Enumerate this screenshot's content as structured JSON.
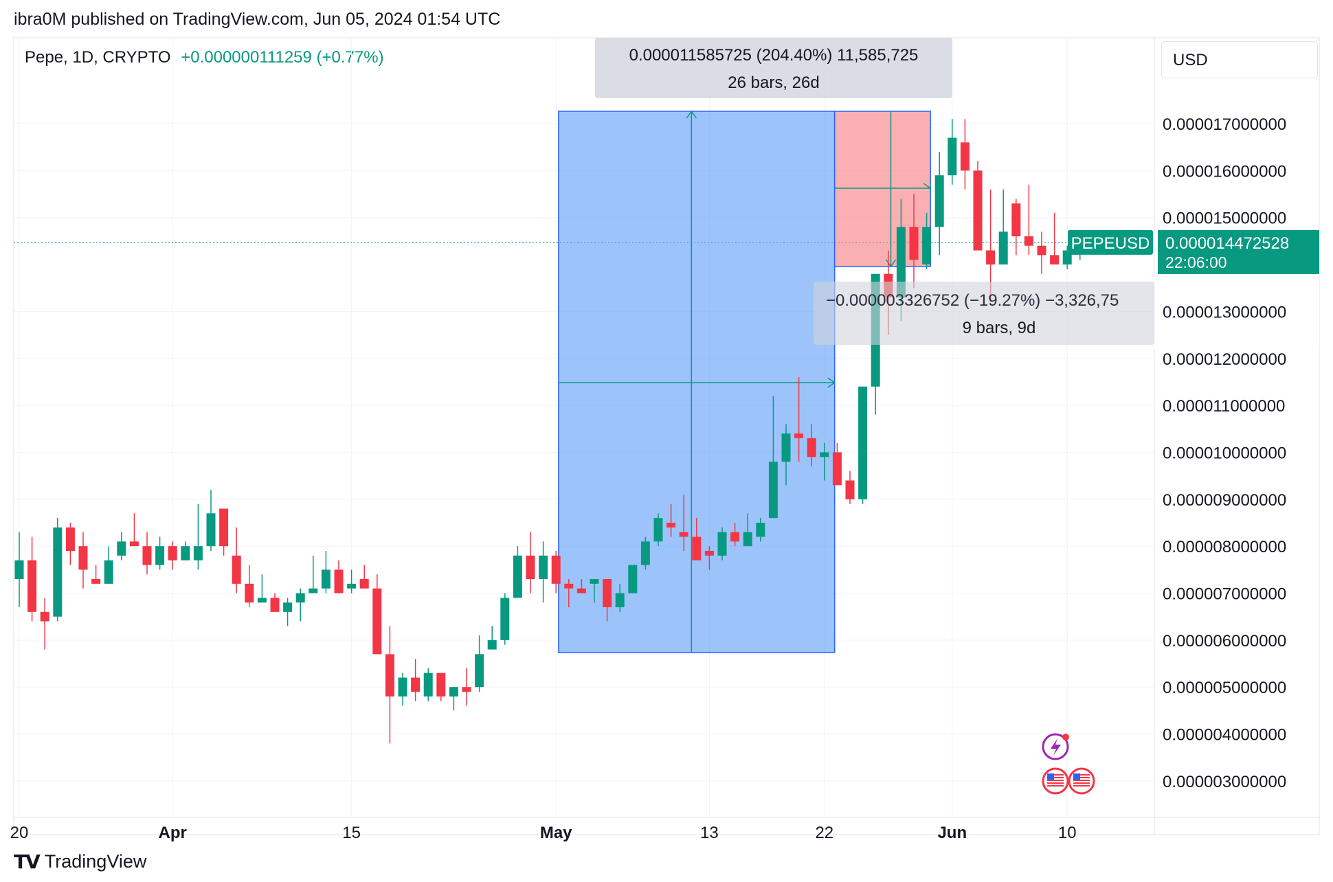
{
  "header": {
    "published": "ibra0M published on TradingView.com, Jun 05, 2024 01:54 UTC"
  },
  "legend": {
    "symbol": "Pepe, 1D, CRYPTO",
    "change": "+0.000000111259 (+0.77%)"
  },
  "currency": "USD",
  "footer": {
    "brand": "TradingView",
    "logo_icon": "tradingview-logo-icon"
  },
  "colors": {
    "up": "#089981",
    "down": "#f23645",
    "long_zone": "#5b9cf6",
    "short_zone": "#f77c80",
    "measure_line": "#089981"
  },
  "chart_data": {
    "type": "candlestick",
    "title": "",
    "xlabel": "",
    "ylabel": "",
    "ylim": [
      2.5e-06,
      1.82e-05
    ],
    "y_ticks": [
      "0.000017000000",
      "0.000016000000",
      "0.000015000000",
      "0.000013000000",
      "0.000012000000",
      "0.000011000000",
      "0.000010000000",
      "0.000009000000",
      "0.000008000000",
      "0.000007000000",
      "0.000006000000",
      "0.000005000000",
      "0.000004000000",
      "0.000003000000"
    ],
    "y_tick_values": [
      17,
      16,
      15,
      13,
      12,
      11,
      10,
      9,
      8,
      7,
      6,
      5,
      4,
      3
    ],
    "x_ticks": [
      {
        "label": "20",
        "day": 0,
        "bold": false
      },
      {
        "label": "Apr",
        "day": 12,
        "bold": true
      },
      {
        "label": "15",
        "day": 26,
        "bold": false
      },
      {
        "label": "May",
        "day": 42,
        "bold": true
      },
      {
        "label": "13",
        "day": 54,
        "bold": false
      },
      {
        "label": "22",
        "day": 63,
        "bold": false
      },
      {
        "label": "Jun",
        "day": 73,
        "bold": true
      },
      {
        "label": "10",
        "day": 82,
        "bold": false
      }
    ],
    "candles_x1e6_ohlc": [
      [
        7.3,
        8.3,
        6.7,
        7.7
      ],
      [
        7.7,
        8.2,
        6.4,
        6.6
      ],
      [
        6.6,
        6.9,
        5.8,
        6.4
      ],
      [
        6.5,
        8.6,
        6.4,
        8.4
      ],
      [
        8.4,
        8.5,
        7.6,
        7.9
      ],
      [
        8.0,
        8.3,
        7.1,
        7.5
      ],
      [
        7.3,
        7.6,
        7.2,
        7.2
      ],
      [
        7.2,
        8.0,
        7.2,
        7.7
      ],
      [
        7.8,
        8.3,
        7.7,
        8.1
      ],
      [
        8.1,
        8.7,
        8.0,
        8.0
      ],
      [
        8.0,
        8.3,
        7.4,
        7.6
      ],
      [
        7.6,
        8.2,
        7.5,
        8.0
      ],
      [
        8.0,
        8.1,
        7.5,
        7.7
      ],
      [
        7.7,
        8.1,
        7.7,
        8.0
      ],
      [
        7.7,
        8.9,
        7.5,
        8.0
      ],
      [
        8.0,
        9.2,
        7.9,
        8.7
      ],
      [
        8.8,
        8.8,
        7.8,
        8.0
      ],
      [
        7.8,
        8.4,
        7.0,
        7.2
      ],
      [
        7.2,
        7.6,
        6.7,
        6.8
      ],
      [
        6.8,
        7.4,
        6.8,
        6.9
      ],
      [
        6.9,
        7.0,
        6.6,
        6.6
      ],
      [
        6.6,
        6.9,
        6.3,
        6.8
      ],
      [
        6.8,
        7.1,
        6.4,
        7.0
      ],
      [
        7.0,
        7.8,
        7.0,
        7.1
      ],
      [
        7.1,
        7.9,
        7.0,
        7.5
      ],
      [
        7.5,
        7.7,
        7.2,
        7.0
      ],
      [
        7.1,
        7.5,
        7.0,
        7.2
      ],
      [
        7.3,
        7.6,
        7.2,
        7.1
      ],
      [
        7.1,
        7.4,
        6.1,
        5.7
      ],
      [
        5.7,
        6.3,
        3.8,
        4.8
      ],
      [
        4.8,
        5.3,
        4.6,
        5.2
      ],
      [
        5.2,
        5.6,
        4.7,
        4.9
      ],
      [
        4.8,
        5.4,
        4.7,
        5.3
      ],
      [
        5.3,
        5.3,
        4.7,
        4.8
      ],
      [
        4.8,
        5.0,
        4.5,
        5.0
      ],
      [
        5.0,
        5.4,
        4.6,
        4.9
      ],
      [
        5.0,
        6.1,
        4.9,
        5.7
      ],
      [
        5.8,
        6.3,
        5.8,
        6.0
      ],
      [
        6.0,
        7.0,
        5.9,
        6.9
      ],
      [
        6.9,
        8.0,
        6.9,
        7.8
      ],
      [
        7.8,
        8.3,
        7.0,
        7.3
      ],
      [
        7.3,
        8.1,
        6.8,
        7.8
      ],
      [
        7.8,
        7.9,
        7.0,
        7.2
      ],
      [
        7.2,
        7.3,
        6.7,
        7.1
      ],
      [
        7.1,
        7.3,
        7.0,
        7.0
      ],
      [
        7.2,
        7.3,
        6.8,
        7.3
      ],
      [
        7.3,
        7.3,
        6.4,
        6.7
      ],
      [
        6.7,
        7.2,
        6.6,
        7.0
      ],
      [
        7.0,
        7.6,
        7.0,
        7.6
      ],
      [
        7.6,
        8.2,
        7.5,
        8.1
      ],
      [
        8.1,
        8.7,
        8.0,
        8.6
      ],
      [
        8.5,
        8.9,
        8.2,
        8.4
      ],
      [
        8.3,
        9.1,
        7.9,
        8.2
      ],
      [
        8.2,
        8.6,
        7.8,
        7.7
      ],
      [
        7.9,
        8.0,
        7.5,
        7.8
      ],
      [
        7.8,
        8.4,
        7.7,
        8.3
      ],
      [
        8.3,
        8.5,
        8.0,
        8.1
      ],
      [
        8.0,
        8.7,
        8.0,
        8.3
      ],
      [
        8.2,
        8.6,
        8.1,
        8.5
      ],
      [
        8.6,
        11.2,
        8.6,
        9.8
      ],
      [
        9.8,
        10.6,
        9.3,
        10.4
      ],
      [
        10.4,
        11.6,
        9.8,
        10.3
      ],
      [
        10.3,
        10.6,
        9.7,
        9.9
      ],
      [
        9.9,
        10.2,
        9.4,
        10.0
      ],
      [
        10.0,
        10.2,
        9.3,
        9.3
      ],
      [
        9.4,
        9.6,
        8.9,
        9.0
      ],
      [
        9.0,
        9.9,
        8.9,
        11.4
      ],
      [
        11.4,
        12.8,
        10.8,
        13.8
      ],
      [
        13.8,
        14.3,
        12.5,
        13.3
      ],
      [
        13.3,
        15.4,
        12.8,
        14.8
      ],
      [
        14.8,
        15.5,
        13.5,
        14.1
      ],
      [
        14.0,
        15.1,
        13.9,
        14.8
      ],
      [
        14.8,
        16.4,
        14.2,
        15.9
      ],
      [
        15.9,
        17.1,
        15.7,
        16.7
      ],
      [
        16.6,
        17.1,
        15.6,
        16.0
      ],
      [
        16.0,
        16.2,
        14.5,
        14.3
      ],
      [
        14.3,
        15.6,
        13.2,
        14.0
      ],
      [
        14.0,
        15.6,
        14.0,
        14.7
      ],
      [
        15.3,
        15.4,
        14.2,
        14.6
      ],
      [
        14.6,
        15.7,
        14.2,
        14.4
      ],
      [
        14.4,
        14.7,
        13.8,
        14.2
      ],
      [
        14.2,
        15.1,
        14.0,
        14.0
      ],
      [
        14.0,
        14.4,
        13.9,
        14.3
      ],
      [
        14.3,
        14.5,
        14.1,
        14.47
      ]
    ],
    "series": [
      {
        "name": "PEPEUSD",
        "last_value": "0.000014472528",
        "countdown": "22:06:00"
      }
    ],
    "annotations": {
      "long_measure": {
        "text1": "0.000011585725 (204.40%) 11,585,725",
        "text2": "26 bars, 26d"
      },
      "short_measure": {
        "text1": "−0.000003326752 (−19.27%) −3,326,75",
        "text2": "9 bars, 9d"
      }
    },
    "icons": [
      "lightning-icon",
      "us-flag-icon",
      "us-flag-icon"
    ],
    "grid": true,
    "legend": "top-left"
  }
}
